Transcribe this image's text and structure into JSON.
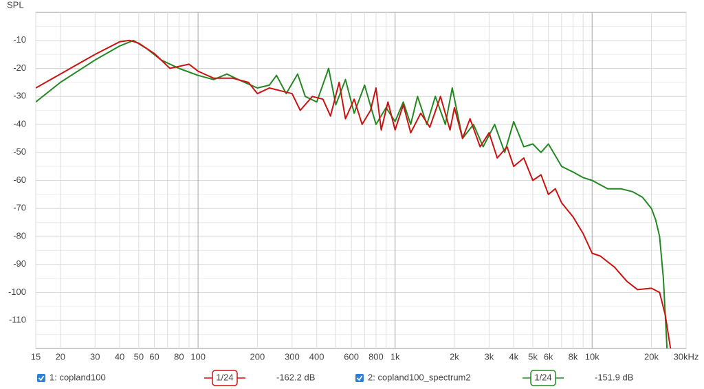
{
  "chart_data": {
    "type": "line",
    "y_label": "SPL",
    "xscale": "log",
    "xlim": [
      15,
      30000
    ],
    "ylim": [
      -120,
      0
    ],
    "xticks": [
      15,
      20,
      30,
      40,
      50,
      60,
      80,
      100,
      200,
      300,
      400,
      600,
      800,
      {
        "value": 1000,
        "label": "1k"
      },
      {
        "value": 2000,
        "label": "2k"
      },
      {
        "value": 3000,
        "label": "3k"
      },
      {
        "value": 4000,
        "label": "4k"
      },
      {
        "value": 5000,
        "label": "5k"
      },
      {
        "value": 6000,
        "label": "6k"
      },
      {
        "value": 8000,
        "label": "8k"
      },
      {
        "value": 10000,
        "label": "10k"
      },
      {
        "value": 20000,
        "label": "20k"
      },
      {
        "value": 30000,
        "label": "30kHz"
      }
    ],
    "x_major_grid": [
      100,
      1000,
      10000
    ],
    "x_minor_grid": [
      70,
      90,
      500,
      700,
      900,
      7000,
      9000
    ],
    "yticks": [
      -110,
      -100,
      -90,
      -80,
      -70,
      -60,
      -50,
      -40,
      -30,
      -20,
      -10
    ],
    "y_minor_grid": [
      -115,
      -105,
      -95,
      -85,
      -75,
      -65,
      -55,
      -45,
      -35,
      -25,
      -15,
      -5
    ],
    "grid": true,
    "series": [
      {
        "name": "1: copland100",
        "color": "#cc1111",
        "smoothing": "1/24",
        "level": "-162.2 dB",
        "x": [
          15,
          20,
          30,
          40,
          45,
          50,
          60,
          72,
          90,
          100,
          120,
          150,
          180,
          200,
          230,
          300,
          330,
          380,
          430,
          470,
          520,
          560,
          620,
          680,
          750,
          800,
          850,
          920,
          1000,
          1100,
          1200,
          1350,
          1500,
          1700,
          1900,
          2000,
          2200,
          2400,
          2700,
          3000,
          3300,
          3700,
          4000,
          4500,
          5000,
          5500,
          6000,
          6500,
          7000,
          8000,
          9000,
          10000,
          11000,
          13000,
          15000,
          17000,
          20000,
          22000,
          23500,
          25000
        ],
        "values": [
          -27,
          -22,
          -15,
          -10.5,
          -10,
          -11,
          -14.7,
          -20,
          -18.5,
          -21,
          -23.5,
          -23.5,
          -25,
          -29,
          -27,
          -29,
          -35,
          -30,
          -31,
          -37,
          -25,
          -38,
          -31,
          -40,
          -35,
          -27,
          -42,
          -32,
          -42,
          -33,
          -43,
          -36,
          -41,
          -30,
          -42,
          -34,
          -45,
          -38,
          -48,
          -43,
          -52,
          -48,
          -55,
          -52,
          -60,
          -58,
          -65,
          -63,
          -68,
          -73,
          -79,
          -86,
          -87,
          -91,
          -96,
          -99,
          -98.5,
          -100,
          -108,
          -120
        ]
      },
      {
        "name": "2: copland100_spectrum2",
        "color": "#228822",
        "smoothing": "1/24",
        "level": "-151.9 dB",
        "x": [
          15,
          20,
          30,
          40,
          47,
          55,
          65,
          80,
          100,
          120,
          140,
          160,
          200,
          230,
          250,
          280,
          320,
          350,
          400,
          460,
          500,
          560,
          620,
          700,
          800,
          900,
          1000,
          1100,
          1200,
          1300,
          1450,
          1600,
          1800,
          1950,
          2200,
          2500,
          2800,
          3200,
          3600,
          4000,
          4500,
          5000,
          5500,
          6000,
          7000,
          8000,
          9000,
          10000,
          12000,
          14000,
          16000,
          18000,
          20000,
          21000,
          22000,
          23000,
          24000
        ],
        "values": [
          -32,
          -25,
          -17,
          -12,
          -10,
          -13,
          -17,
          -20,
          -22.5,
          -24,
          -22,
          -24,
          -27,
          -26,
          -22.5,
          -29,
          -22,
          -30,
          -32,
          -20,
          -33,
          -24,
          -36,
          -26,
          -40,
          -34,
          -39,
          -32,
          -40,
          -30,
          -40,
          -30,
          -40,
          -27,
          -45,
          -40,
          -48,
          -40,
          -50,
          -39,
          -48,
          -47,
          -50,
          -47,
          -55,
          -57,
          -59,
          -60,
          -63,
          -63,
          -64,
          -66,
          -70,
          -74,
          -80,
          -95,
          -120
        ]
      }
    ]
  }
}
